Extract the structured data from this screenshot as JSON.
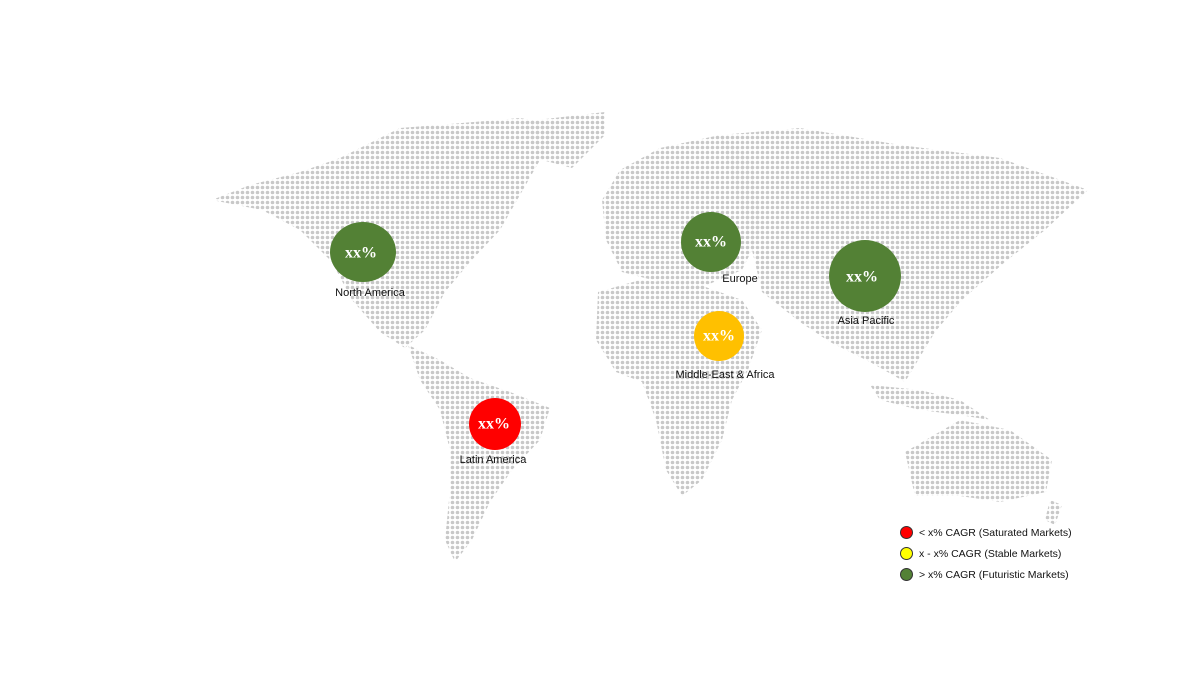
{
  "regions": [
    {
      "name": "North America",
      "value": "xx%",
      "color": "#538135"
    },
    {
      "name": "Europe",
      "value": "xx%",
      "color": "#538135"
    },
    {
      "name": "Asia Pacific",
      "value": "xx%",
      "color": "#538135"
    },
    {
      "name": "Middle-East & Africa",
      "value": "xx%",
      "color": "#ffc000"
    },
    {
      "name": "Latin America",
      "value": "xx%",
      "color": "#ff0000"
    }
  ],
  "legend": [
    {
      "label": "< x% CAGR (Saturated Markets)",
      "color": "#ff0000"
    },
    {
      "label": "x - x% CAGR (Stable Markets)",
      "color": "#ffff00"
    },
    {
      "label": "> x% CAGR (Futuristic Markets)",
      "color": "#538135"
    }
  ],
  "map_dot_color": "#c8c8c8"
}
